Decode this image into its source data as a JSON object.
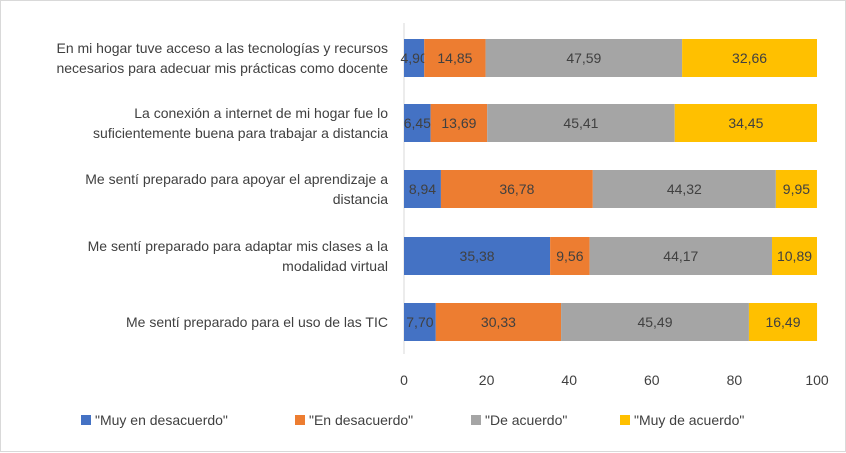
{
  "chart_data": {
    "type": "bar",
    "orientation": "horizontal",
    "stacked": true,
    "categories": [
      [
        "En mi hogar tuve acceso a las tecnologías y recursos",
        "necesarios para adecuar mis prácticas como docente"
      ],
      [
        "La conexión a internet de mi hogar fue lo",
        "suficientemente buena para trabajar a distancia"
      ],
      [
        "Me sentí preparado para apoyar el aprendizaje a",
        "distancia"
      ],
      [
        "Me sentí preparado para adaptar mis clases a la",
        "modalidad virtual"
      ],
      [
        "Me sentí preparado para el uso de las TIC"
      ]
    ],
    "series": [
      {
        "name": "\"Muy en desacuerdo\"",
        "color": "#4472C4",
        "values": [
          4.9,
          6.45,
          8.94,
          35.38,
          7.7
        ],
        "labels": [
          "4,90",
          "6,45",
          "8,94",
          "35,38",
          "7,70"
        ]
      },
      {
        "name": "\"En desacuerdo\"",
        "color": "#ED7D31",
        "values": [
          14.85,
          13.69,
          36.78,
          9.56,
          30.33
        ],
        "labels": [
          "14,85",
          "13,69",
          "36,78",
          "9,56",
          "30,33"
        ]
      },
      {
        "name": "\"De acuerdo\"",
        "color": "#A5A5A5",
        "values": [
          47.59,
          45.41,
          44.32,
          44.17,
          45.49
        ],
        "labels": [
          "47,59",
          "45,41",
          "44,32",
          "44,17",
          "45,49"
        ]
      },
      {
        "name": "\"Muy de acuerdo\"",
        "color": "#FFC000",
        "values": [
          32.66,
          34.45,
          9.95,
          10.89,
          16.49
        ],
        "labels": [
          "32,66",
          "34,45",
          "9,95",
          "10,89",
          "16,49"
        ]
      }
    ],
    "xlim": [
      0,
      100
    ],
    "xticks": [
      0,
      20,
      40,
      60,
      80,
      100
    ],
    "title": "",
    "xlabel": "",
    "ylabel": "",
    "grid": false,
    "legend_position": "bottom"
  }
}
